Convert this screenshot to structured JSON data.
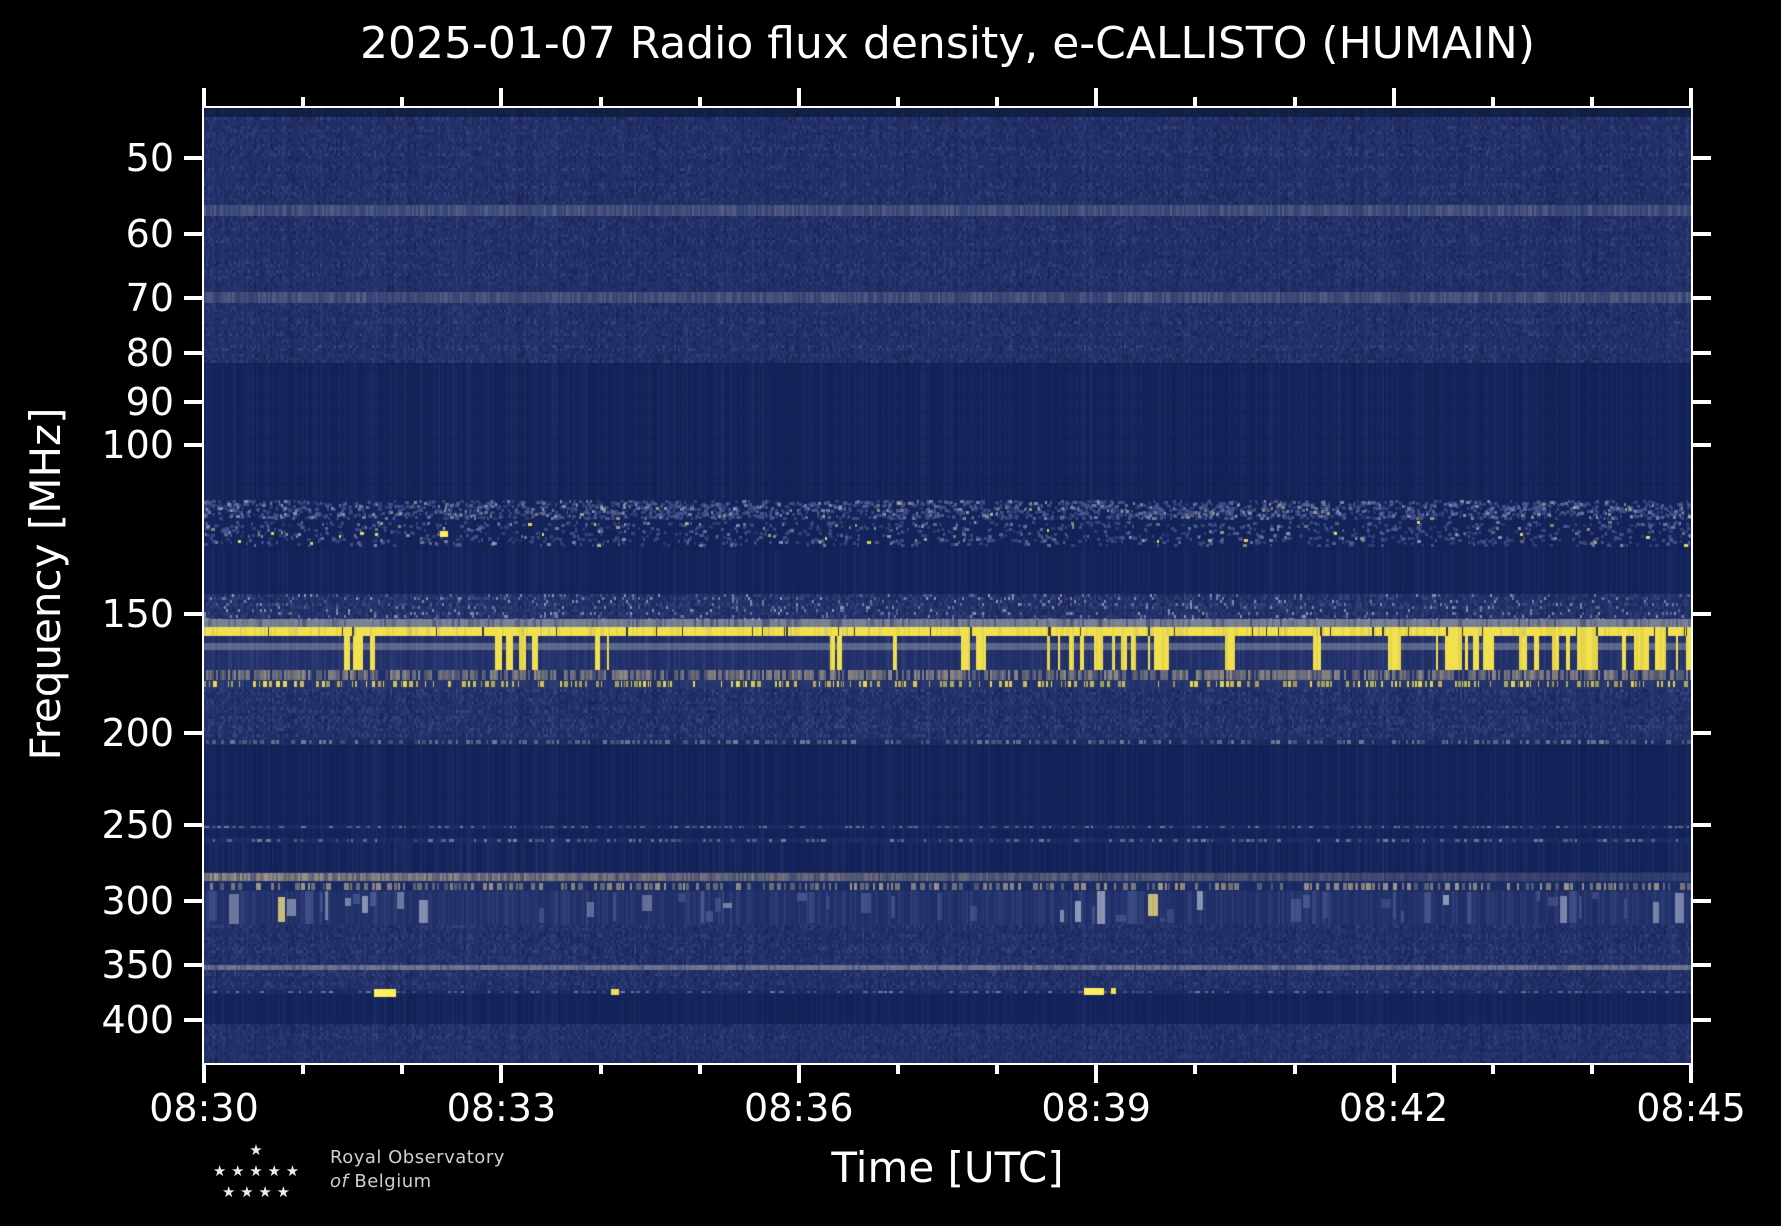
{
  "figure": {
    "background": "#000000"
  },
  "chart_data": {
    "type": "heatmap",
    "title": "2025-01-07 Radio flux density, e-CALLISTO (HUMAIN)",
    "xlabel": "Time [UTC]",
    "ylabel": "Frequency [MHz]",
    "date": "2025-01-07",
    "instrument": "e-CALLISTO",
    "station": "HUMAIN",
    "description": "Dynamic radio spectrum (RFI-dominated, no solar burst): dark blue background with horizontal interference bands, a continuous bright yellow RFI line near 157 MHz, intermittent yellow vertical bursts 159-172 MHz, a dashed yellow line near 178 MHz, gray carrier stripes near 153, 163, 285 and 352 MHz, quiet dark bands at 85-114, 128-143, 206-250 and 376-404 MHz, and sporadic yellow blobs near 123 and 370-373 MHz.",
    "x_axis": {
      "start": "08:30",
      "end": "08:45",
      "duration_min": 15,
      "major_tick_every_min": 3,
      "minor_tick_every_min": 1,
      "major_labels": [
        "08:30",
        "08:33",
        "08:36",
        "08:39",
        "08:42",
        "08:45"
      ]
    },
    "y_axis": {
      "scale": "log",
      "f_min_mhz": 44.3,
      "f_max_mhz": 443.8,
      "ticks_mhz": [
        50,
        60,
        70,
        80,
        90,
        100,
        150,
        200,
        250,
        300,
        350,
        400
      ],
      "direction": "increasing-downward"
    },
    "colormap": {
      "navy": "#22306a",
      "navy_dark": "#131f45",
      "navy_flat": "#13235a",
      "blue_light": "#55639d",
      "speck": "#9aa5c0",
      "gray": "#8d93a2",
      "tan": "#c3b58e",
      "yellow": "#f2e14f",
      "yellow_bright": "#ffee60"
    },
    "bands": [
      {
        "f": [
          44.3,
          45.3
        ],
        "style": "flat",
        "color": "navy_dark"
      },
      {
        "f": [
          45.3,
          56
        ],
        "style": "noise",
        "level": 0.5
      },
      {
        "f": [
          56,
          57.5
        ],
        "style": "light_row"
      },
      {
        "f": [
          57.5,
          69
        ],
        "style": "noise",
        "level": 0.45
      },
      {
        "f": [
          69,
          71
        ],
        "style": "light_row"
      },
      {
        "f": [
          71,
          82
        ],
        "style": "noise",
        "level": 0.55
      },
      {
        "f": [
          82,
          114
        ],
        "style": "flat_noise",
        "level": 0.1
      },
      {
        "f": [
          114,
          120
        ],
        "style": "specks",
        "density": 1.6
      },
      {
        "f": [
          120,
          128
        ],
        "style": "specks",
        "density": 0.8,
        "yellow": true
      },
      {
        "f": [
          128,
          143
        ],
        "style": "flat_noise",
        "level": 0.08
      },
      {
        "f": [
          143,
          152
        ],
        "style": "noise",
        "level": 0.7,
        "specks": true
      },
      {
        "f": [
          152,
          155
        ],
        "style": "gray_stripe"
      },
      {
        "f": [
          155,
          158.5
        ],
        "style": "yellow_line"
      },
      {
        "f": [
          158.5,
          172
        ],
        "style": "yellow_dashes",
        "p": 0.12,
        "gray_sub": [
          161,
          164
        ]
      },
      {
        "f": [
          172,
          176
        ],
        "style": "tan_texture"
      },
      {
        "f": [
          176,
          180
        ],
        "style": "yellow_dots"
      },
      {
        "f": [
          180,
          203
        ],
        "style": "noise",
        "level": 0.6,
        "streaks": true
      },
      {
        "f": [
          203,
          206
        ],
        "style": "dot_row",
        "color": "gray",
        "density": 0.55
      },
      {
        "f": [
          206,
          250
        ],
        "style": "flat_noise",
        "level": 0.07
      },
      {
        "f": [
          250,
          252.5
        ],
        "style": "dot_row",
        "color": "gray",
        "density": 0.5
      },
      {
        "f": [
          252.5,
          258
        ],
        "style": "flat_noise",
        "level": 0.07
      },
      {
        "f": [
          258,
          261
        ],
        "style": "dot_row",
        "color": "gray",
        "density": 0.35
      },
      {
        "f": [
          261,
          280
        ],
        "style": "flat_noise",
        "level": 0.15
      },
      {
        "f": [
          280,
          287
        ],
        "style": "tan_fade"
      },
      {
        "f": [
          287,
          293
        ],
        "style": "dot_row",
        "color": "tan",
        "density": 0.7
      },
      {
        "f": [
          293,
          318
        ],
        "style": "blocky",
        "yellow": true
      },
      {
        "f": [
          318,
          333
        ],
        "style": "noise",
        "level": 0.5
      },
      {
        "f": [
          333,
          350
        ],
        "style": "noise",
        "level": 0.6,
        "streaks": true
      },
      {
        "f": [
          350,
          355
        ],
        "style": "gray_line"
      },
      {
        "f": [
          355,
          372
        ],
        "style": "noise",
        "level": 0.5
      },
      {
        "f": [
          372,
          376
        ],
        "style": "dot_row",
        "color": "gray",
        "density": 0.4
      },
      {
        "f": [
          376,
          404
        ],
        "style": "flat_noise",
        "level": 0.07
      },
      {
        "f": [
          404,
          420
        ],
        "style": "noise",
        "level": 0.55,
        "streaks": true
      },
      {
        "f": [
          420,
          443.8
        ],
        "style": "noise",
        "level": 0.4
      }
    ],
    "events": [
      {
        "x": 0.159,
        "f": 123,
        "w": 8,
        "h": 6,
        "color": "yellow_bright"
      },
      {
        "x": 0.114,
        "f": 371,
        "w": 22,
        "h": 8,
        "color": "yellow_bright"
      },
      {
        "x": 0.274,
        "f": 371,
        "w": 8,
        "h": 6,
        "color": "yellow"
      },
      {
        "x": 0.592,
        "f": 370,
        "w": 20,
        "h": 7,
        "color": "yellow_bright"
      },
      {
        "x": 0.61,
        "f": 370,
        "w": 5,
        "h": 6,
        "color": "yellow"
      }
    ]
  },
  "logo": {
    "stars": [
      1,
      5,
      4
    ],
    "star_glyph": "★",
    "line1": "Royal Observatory",
    "line2_prefix": "of",
    "line2": "Belgium"
  }
}
